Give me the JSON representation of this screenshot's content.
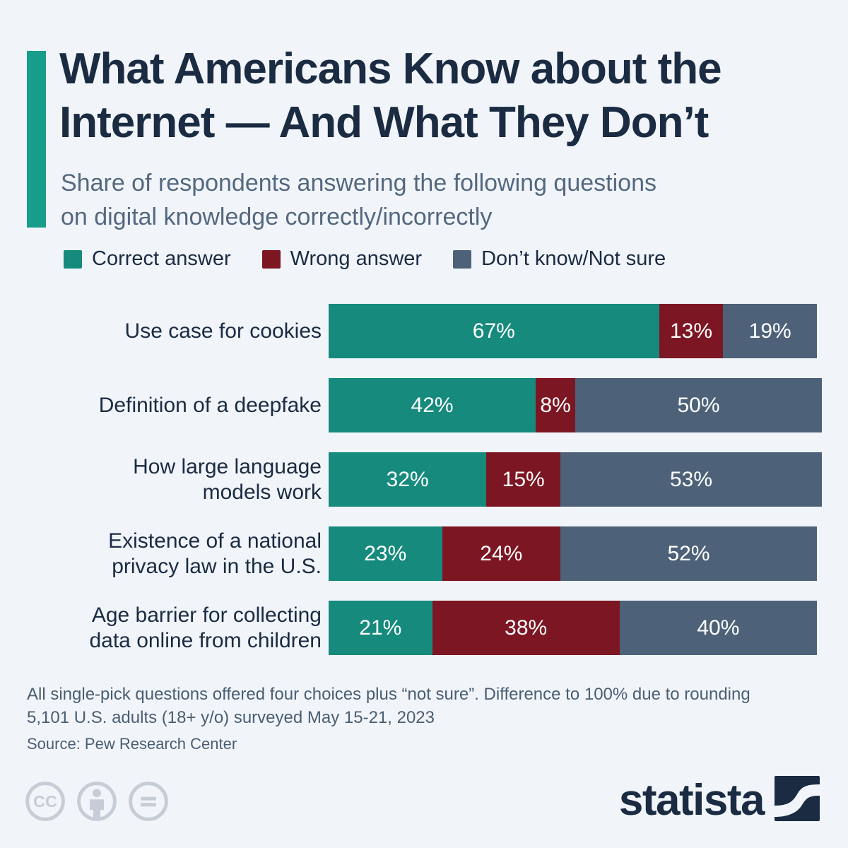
{
  "colors": {
    "background": "#f1f5fa",
    "accent": "#199d8b",
    "title_text": "#1a2b42",
    "subtitle_text": "#54687f",
    "note_text": "#4a5d72",
    "correct": "#168a7c",
    "wrong": "#7d1623",
    "dont_know": "#4d6278",
    "cc_gray": "#c6cdd7"
  },
  "title_lines": [
    "What Americans Know about the",
    "Internet — And What They Don’t"
  ],
  "subtitle_lines": [
    "Share of respondents answering the following questions",
    "on digital knowledge correctly/incorrectly"
  ],
  "legend": [
    {
      "label": "Correct answer",
      "color": "#168a7c"
    },
    {
      "label": "Wrong answer",
      "color": "#7d1623"
    },
    {
      "label": "Don’t know/Not sure",
      "color": "#4d6278"
    }
  ],
  "chart_data": {
    "type": "bar",
    "orientation": "horizontal",
    "stacked": true,
    "unit": "%",
    "xlim": [
      0,
      100
    ],
    "grid": false,
    "legend_position": "top",
    "categories": [
      "Use case for cookies",
      "Definition of a deepfake",
      "How large language\nmodels work",
      "Existence of a national\nprivacy law in the U.S.",
      "Age barrier for collecting\ndata online from children"
    ],
    "series": [
      {
        "name": "Correct answer",
        "color": "#168a7c",
        "values": [
          67,
          42,
          32,
          23,
          21
        ]
      },
      {
        "name": "Wrong answer",
        "color": "#7d1623",
        "values": [
          13,
          8,
          15,
          24,
          38
        ]
      },
      {
        "name": "Don’t know/Not sure",
        "color": "#4d6278",
        "values": [
          19,
          50,
          53,
          52,
          40
        ]
      }
    ],
    "value_label_format": "{value}%"
  },
  "notes": [
    "All single-pick questions offered four choices plus “not sure”. Difference to 100% due to rounding",
    "5,101 U.S. adults (18+ y/o) surveyed May 15-21, 2023"
  ],
  "source": "Source: Pew Research Center",
  "branding": {
    "wordmark": "statista",
    "license_icons": [
      "cc",
      "by",
      "nd"
    ]
  }
}
